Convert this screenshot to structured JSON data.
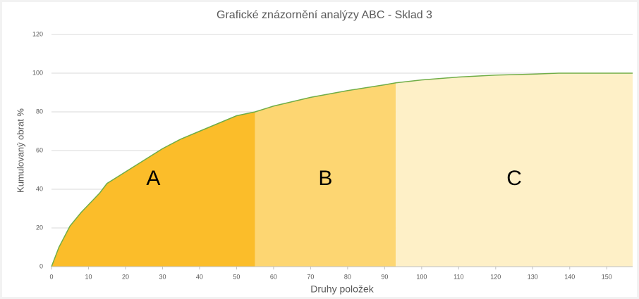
{
  "chart_data": {
    "type": "area",
    "title": "Grafické znázornění analýzy ABC - Sklad 3",
    "xlabel": "Druhy položek",
    "ylabel": "Kumulovaný obrat %",
    "x": [
      0,
      2,
      5,
      8,
      10,
      13,
      15,
      20,
      25,
      30,
      35,
      40,
      45,
      50,
      55,
      60,
      70,
      80,
      90,
      93,
      100,
      110,
      120,
      130,
      137,
      157
    ],
    "values": [
      0,
      10,
      21,
      28,
      32,
      38,
      43,
      49,
      55,
      61,
      66,
      70,
      74,
      78,
      80,
      83,
      87.5,
      91,
      94,
      95,
      96.5,
      98,
      99,
      99.5,
      100,
      100
    ],
    "color": "#70ad47",
    "zones": [
      {
        "label": "A",
        "from": 0,
        "to": 55,
        "color": "#fbbd2a"
      },
      {
        "label": "B",
        "from": 55,
        "to": 93,
        "color": "#fdd672"
      },
      {
        "label": "C",
        "from": 93,
        "to": 157,
        "color": "#fef0c7"
      }
    ],
    "xlim": [
      0,
      157
    ],
    "xticks": [
      0,
      10,
      20,
      30,
      40,
      50,
      60,
      70,
      80,
      90,
      100,
      110,
      120,
      130,
      140,
      150
    ],
    "ylim": [
      0,
      120
    ],
    "yticks": [
      0,
      20,
      40,
      60,
      80,
      100,
      120
    ],
    "grid": true
  }
}
